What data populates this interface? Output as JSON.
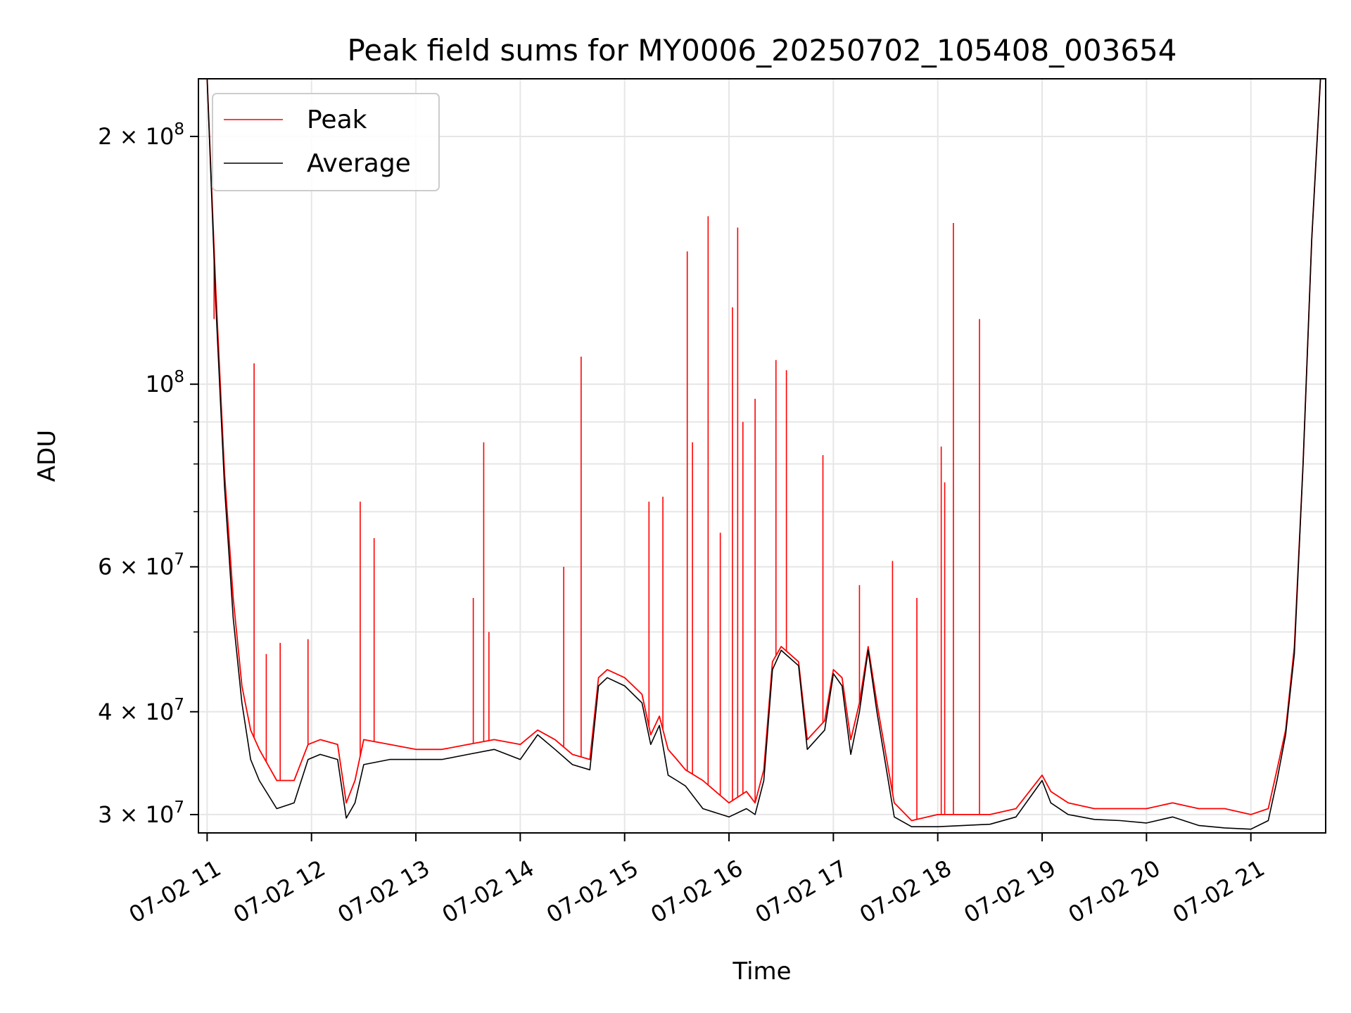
{
  "chart_data": {
    "type": "line",
    "title": "Peak field sums for MY0006_20250702_105408_003654",
    "xlabel": "Time",
    "ylabel": "ADU",
    "yscale": "log",
    "xlim": [
      "07-02 10:55",
      "07-02 21:43"
    ],
    "ylim": [
      28500000,
      235000000
    ],
    "grid": true,
    "legend": "top-left",
    "x_ticks": [
      {
        "label": "07-02 11",
        "hour": 11
      },
      {
        "label": "07-02 12",
        "hour": 12
      },
      {
        "label": "07-02 13",
        "hour": 13
      },
      {
        "label": "07-02 14",
        "hour": 14
      },
      {
        "label": "07-02 15",
        "hour": 15
      },
      {
        "label": "07-02 16",
        "hour": 16
      },
      {
        "label": "07-02 17",
        "hour": 17
      },
      {
        "label": "07-02 18",
        "hour": 18
      },
      {
        "label": "07-02 19",
        "hour": 19
      },
      {
        "label": "07-02 20",
        "hour": 20
      },
      {
        "label": "07-02 21",
        "hour": 21
      }
    ],
    "y_ticks": [
      {
        "mantissa": "3",
        "exp": "7",
        "value": 30000000
      },
      {
        "mantissa": "4",
        "exp": "7",
        "value": 40000000
      },
      {
        "mantissa": "6",
        "exp": "7",
        "value": 60000000
      },
      {
        "mantissa": "",
        "exp": "8",
        "value": 100000000
      },
      {
        "mantissa": "2",
        "exp": "8",
        "value": 200000000
      }
    ],
    "y_minor_gridlines": [
      50000000,
      70000000,
      80000000,
      90000000
    ],
    "series": [
      {
        "name": "Peak",
        "color": "#ff0000",
        "x": [
          "07-02 11:00",
          "07-02 11:05",
          "07-02 11:10",
          "07-02 11:15",
          "07-02 11:20",
          "07-02 11:25",
          "07-02 11:30",
          "07-02 11:40",
          "07-02 11:50",
          "07-02 11:58",
          "07-02 12:05",
          "07-02 12:15",
          "07-02 12:20",
          "07-02 12:25",
          "07-02 12:30",
          "07-02 12:45",
          "07-02 13:00",
          "07-02 13:15",
          "07-02 13:30",
          "07-02 13:45",
          "07-02 14:00",
          "07-02 14:10",
          "07-02 14:20",
          "07-02 14:30",
          "07-02 14:40",
          "07-02 14:45",
          "07-02 14:50",
          "07-02 15:00",
          "07-02 15:10",
          "07-02 15:15",
          "07-02 15:20",
          "07-02 15:25",
          "07-02 15:30",
          "07-02 15:35",
          "07-02 15:45",
          "07-02 16:00",
          "07-02 16:10",
          "07-02 16:15",
          "07-02 16:20",
          "07-02 16:25",
          "07-02 16:30",
          "07-02 16:40",
          "07-02 16:45",
          "07-02 16:55",
          "07-02 17:00",
          "07-02 17:05",
          "07-02 17:10",
          "07-02 17:15",
          "07-02 17:20",
          "07-02 17:25",
          "07-02 17:35",
          "07-02 17:45",
          "07-02 18:00",
          "07-02 18:15",
          "07-02 18:30",
          "07-02 18:45",
          "07-02 19:00",
          "07-02 19:05",
          "07-02 19:15",
          "07-02 19:30",
          "07-02 19:45",
          "07-02 20:00",
          "07-02 20:15",
          "07-02 20:30",
          "07-02 20:45",
          "07-02 21:00",
          "07-02 21:10",
          "07-02 21:15",
          "07-02 21:20",
          "07-02 21:25",
          "07-02 21:30",
          "07-02 21:35",
          "07-02 21:40"
        ],
        "y": [
          235000000,
          130000000,
          78000000,
          55000000,
          43000000,
          38000000,
          36000000,
          33000000,
          33000000,
          36500000,
          37000000,
          36500000,
          31000000,
          33000000,
          37000000,
          36500000,
          36000000,
          36000000,
          36500000,
          37000000,
          36500000,
          38000000,
          37000000,
          35500000,
          35000000,
          44000000,
          45000000,
          44000000,
          42000000,
          37500000,
          39500000,
          36000000,
          35000000,
          34000000,
          33000000,
          31000000,
          32000000,
          31000000,
          34000000,
          46000000,
          48000000,
          46000000,
          37000000,
          39000000,
          45000000,
          44000000,
          37000000,
          41000000,
          48000000,
          41000000,
          31000000,
          29500000,
          30000000,
          30000000,
          30000000,
          30500000,
          33500000,
          32000000,
          31000000,
          30500000,
          30500000,
          30500000,
          31000000,
          30500000,
          30500000,
          30000000,
          30500000,
          34000000,
          38000000,
          48000000,
          80000000,
          150000000,
          235000000
        ],
        "spikes": [
          {
            "x": "07-02 11:04",
            "y": 120000000
          },
          {
            "x": "07-02 11:27",
            "y": 106000000
          },
          {
            "x": "07-02 11:34",
            "y": 47000000
          },
          {
            "x": "07-02 11:42",
            "y": 48500000
          },
          {
            "x": "07-02 11:58",
            "y": 49000000
          },
          {
            "x": "07-02 12:28",
            "y": 72000000
          },
          {
            "x": "07-02 12:36",
            "y": 65000000
          },
          {
            "x": "07-02 13:33",
            "y": 55000000
          },
          {
            "x": "07-02 13:39",
            "y": 85000000
          },
          {
            "x": "07-02 13:42",
            "y": 50000000
          },
          {
            "x": "07-02 14:25",
            "y": 60000000
          },
          {
            "x": "07-02 14:35",
            "y": 108000000
          },
          {
            "x": "07-02 15:14",
            "y": 72000000
          },
          {
            "x": "07-02 15:22",
            "y": 73000000
          },
          {
            "x": "07-02 15:36",
            "y": 145000000
          },
          {
            "x": "07-02 15:39",
            "y": 85000000
          },
          {
            "x": "07-02 15:48",
            "y": 160000000
          },
          {
            "x": "07-02 15:55",
            "y": 66000000
          },
          {
            "x": "07-02 16:02",
            "y": 124000000
          },
          {
            "x": "07-02 16:05",
            "y": 155000000
          },
          {
            "x": "07-02 16:08",
            "y": 90000000
          },
          {
            "x": "07-02 16:15",
            "y": 96000000
          },
          {
            "x": "07-02 16:27",
            "y": 107000000
          },
          {
            "x": "07-02 16:33",
            "y": 104000000
          },
          {
            "x": "07-02 16:54",
            "y": 82000000
          },
          {
            "x": "07-02 17:15",
            "y": 57000000
          },
          {
            "x": "07-02 17:34",
            "y": 61000000
          },
          {
            "x": "07-02 17:48",
            "y": 55000000
          },
          {
            "x": "07-02 18:02",
            "y": 84000000
          },
          {
            "x": "07-02 18:04",
            "y": 76000000
          },
          {
            "x": "07-02 18:09",
            "y": 157000000
          },
          {
            "x": "07-02 18:24",
            "y": 120000000
          }
        ]
      },
      {
        "name": "Average",
        "color": "#000000",
        "x": [
          "07-02 11:00",
          "07-02 11:05",
          "07-02 11:10",
          "07-02 11:15",
          "07-02 11:20",
          "07-02 11:25",
          "07-02 11:30",
          "07-02 11:40",
          "07-02 11:50",
          "07-02 11:58",
          "07-02 12:05",
          "07-02 12:15",
          "07-02 12:20",
          "07-02 12:25",
          "07-02 12:30",
          "07-02 12:45",
          "07-02 13:00",
          "07-02 13:15",
          "07-02 13:30",
          "07-02 13:45",
          "07-02 14:00",
          "07-02 14:10",
          "07-02 14:20",
          "07-02 14:30",
          "07-02 14:40",
          "07-02 14:45",
          "07-02 14:50",
          "07-02 15:00",
          "07-02 15:10",
          "07-02 15:15",
          "07-02 15:20",
          "07-02 15:25",
          "07-02 15:30",
          "07-02 15:35",
          "07-02 15:45",
          "07-02 16:00",
          "07-02 16:10",
          "07-02 16:15",
          "07-02 16:20",
          "07-02 16:25",
          "07-02 16:30",
          "07-02 16:40",
          "07-02 16:45",
          "07-02 16:55",
          "07-02 17:00",
          "07-02 17:05",
          "07-02 17:10",
          "07-02 17:15",
          "07-02 17:20",
          "07-02 17:25",
          "07-02 17:35",
          "07-02 17:45",
          "07-02 18:00",
          "07-02 18:15",
          "07-02 18:30",
          "07-02 18:45",
          "07-02 19:00",
          "07-02 19:05",
          "07-02 19:15",
          "07-02 19:30",
          "07-02 19:45",
          "07-02 20:00",
          "07-02 20:15",
          "07-02 20:30",
          "07-02 20:45",
          "07-02 21:00",
          "07-02 21:10",
          "07-02 21:15",
          "07-02 21:20",
          "07-02 21:25",
          "07-02 21:30",
          "07-02 21:35",
          "07-02 21:40"
        ],
        "y": [
          235000000,
          125000000,
          75000000,
          52000000,
          41000000,
          35000000,
          33000000,
          30500000,
          31000000,
          35000000,
          35500000,
          35000000,
          29700000,
          31000000,
          34500000,
          35000000,
          35000000,
          35000000,
          35500000,
          36000000,
          35000000,
          37500000,
          36000000,
          34500000,
          34000000,
          43000000,
          44000000,
          43000000,
          41000000,
          36500000,
          38500000,
          33500000,
          33000000,
          32500000,
          30500000,
          29800000,
          30500000,
          30000000,
          33000000,
          45000000,
          47500000,
          45500000,
          36000000,
          38000000,
          44500000,
          43000000,
          35500000,
          40000000,
          47500000,
          40000000,
          29800000,
          29000000,
          29000000,
          29100000,
          29200000,
          29800000,
          33000000,
          31000000,
          30000000,
          29600000,
          29500000,
          29300000,
          29800000,
          29100000,
          28900000,
          28800000,
          29500000,
          33000000,
          37500000,
          47000000,
          80000000,
          150000000,
          235000000
        ]
      }
    ]
  }
}
